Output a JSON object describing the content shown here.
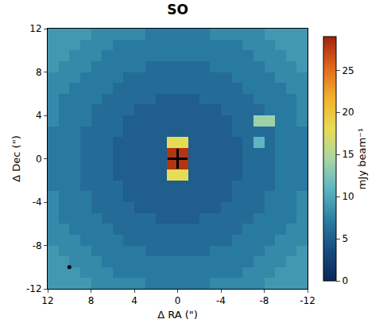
{
  "chart_data": {
    "type": "heatmap",
    "title": "SO",
    "x_label": "Δ RA (\")",
    "y_label": "Δ Dec (\")",
    "xlim": [
      12,
      -12
    ],
    "ylim": [
      -12,
      12
    ],
    "xticks": [
      12,
      8,
      4,
      0,
      -4,
      -8,
      -12
    ],
    "yticks": [
      -12,
      -8,
      -4,
      0,
      4,
      8,
      12
    ],
    "grid": false,
    "x": [
      -11.5,
      -10.5,
      -9.5,
      -8.5,
      -7.5,
      -6.5,
      -5.5,
      -4.5,
      -3.5,
      -2.5,
      -1.5,
      -0.5,
      0.5,
      1.5,
      2.5,
      3.5,
      4.5,
      5.5,
      6.5,
      7.5,
      8.5,
      9.5,
      10.5,
      11.5
    ],
    "y": [
      -11.5,
      -10.5,
      -9.5,
      -8.5,
      -7.5,
      -6.5,
      -5.5,
      -4.5,
      -3.5,
      -2.5,
      -1.5,
      -0.5,
      0.5,
      1.5,
      2.5,
      3.5,
      4.5,
      5.5,
      6.5,
      7.5,
      8.5,
      9.5,
      10.5,
      11.5
    ],
    "cells": [
      [
        9,
        9,
        9,
        9,
        8,
        8,
        8,
        8,
        8,
        7,
        7,
        7,
        7,
        7,
        7,
        8,
        8,
        8,
        8,
        8,
        9,
        9,
        9,
        9
      ],
      [
        9,
        9,
        9,
        8,
        8,
        8,
        7,
        7,
        7,
        7,
        7,
        7,
        7,
        7,
        7,
        7,
        7,
        7,
        8,
        8,
        8,
        9,
        9,
        9
      ],
      [
        9,
        9,
        8,
        8,
        8,
        7,
        7,
        7,
        7,
        7,
        7,
        7,
        7,
        7,
        7,
        7,
        7,
        7,
        7,
        8,
        8,
        8,
        9,
        9
      ],
      [
        9,
        8,
        8,
        8,
        7,
        7,
        7,
        7,
        7,
        6,
        6,
        6,
        6,
        6,
        6,
        7,
        7,
        7,
        7,
        7,
        8,
        8,
        8,
        9
      ],
      [
        8,
        8,
        8,
        7,
        7,
        7,
        7,
        6,
        6,
        6,
        6,
        6,
        6,
        6,
        6,
        6,
        6,
        7,
        7,
        7,
        7,
        8,
        8,
        8
      ],
      [
        8,
        8,
        7,
        7,
        7,
        7,
        6,
        6,
        6,
        6,
        6,
        6,
        6,
        6,
        6,
        6,
        6,
        6,
        7,
        7,
        7,
        7,
        8,
        8
      ],
      [
        8,
        7,
        7,
        7,
        7,
        6,
        6,
        6,
        6,
        6,
        5,
        5,
        5,
        5,
        6,
        6,
        6,
        6,
        6,
        7,
        7,
        7,
        7,
        8
      ],
      [
        8,
        7,
        7,
        7,
        6,
        6,
        6,
        6,
        5,
        5,
        5,
        5,
        5,
        5,
        5,
        5,
        6,
        6,
        6,
        6,
        7,
        7,
        7,
        8
      ],
      [
        8,
        7,
        7,
        7,
        6,
        6,
        6,
        5,
        5,
        5,
        5,
        5,
        5,
        5,
        5,
        5,
        5,
        6,
        6,
        6,
        7,
        7,
        7,
        8
      ],
      [
        7,
        7,
        7,
        6,
        6,
        6,
        6,
        5,
        5,
        5,
        5,
        5,
        5,
        5,
        5,
        5,
        5,
        6,
        6,
        6,
        6,
        7,
        7,
        7
      ],
      [
        7,
        7,
        7,
        6,
        6,
        6,
        5,
        5,
        5,
        5,
        5,
        18,
        18,
        5,
        5,
        5,
        5,
        5,
        6,
        6,
        6,
        7,
        7,
        7
      ],
      [
        7,
        7,
        7,
        6,
        6,
        6,
        5,
        5,
        5,
        5,
        5,
        28,
        28,
        5,
        5,
        5,
        5,
        5,
        6,
        6,
        6,
        7,
        7,
        7
      ],
      [
        7,
        7,
        7,
        6,
        6,
        6,
        5,
        5,
        5,
        5,
        5,
        28,
        28,
        5,
        5,
        5,
        5,
        5,
        6,
        6,
        6,
        7,
        7,
        7
      ],
      [
        7,
        7,
        7,
        6,
        11,
        6,
        5,
        5,
        5,
        5,
        5,
        18,
        18,
        5,
        5,
        5,
        5,
        5,
        6,
        6,
        6,
        7,
        7,
        7
      ],
      [
        7,
        7,
        7,
        6,
        6,
        6,
        6,
        5,
        5,
        5,
        5,
        5,
        5,
        5,
        5,
        5,
        5,
        6,
        6,
        6,
        6,
        7,
        7,
        7
      ],
      [
        8,
        7,
        7,
        14,
        14,
        6,
        6,
        5,
        5,
        5,
        5,
        5,
        5,
        5,
        5,
        5,
        5,
        6,
        6,
        6,
        7,
        7,
        7,
        8
      ],
      [
        8,
        7,
        7,
        7,
        6,
        6,
        6,
        6,
        5,
        5,
        5,
        5,
        5,
        5,
        5,
        5,
        6,
        6,
        6,
        6,
        7,
        7,
        7,
        8
      ],
      [
        8,
        7,
        7,
        7,
        7,
        6,
        6,
        6,
        6,
        6,
        5,
        5,
        5,
        5,
        6,
        6,
        6,
        6,
        6,
        7,
        7,
        7,
        7,
        8
      ],
      [
        8,
        8,
        7,
        7,
        7,
        7,
        6,
        6,
        6,
        6,
        6,
        6,
        6,
        6,
        6,
        6,
        6,
        6,
        7,
        7,
        7,
        7,
        8,
        8
      ],
      [
        8,
        8,
        8,
        7,
        7,
        7,
        7,
        6,
        6,
        6,
        6,
        6,
        6,
        6,
        6,
        6,
        6,
        7,
        7,
        7,
        7,
        8,
        8,
        8
      ],
      [
        9,
        8,
        8,
        8,
        7,
        7,
        7,
        7,
        7,
        6,
        6,
        6,
        6,
        6,
        6,
        7,
        7,
        7,
        7,
        7,
        8,
        8,
        8,
        9
      ],
      [
        9,
        9,
        8,
        8,
        8,
        7,
        7,
        7,
        7,
        7,
        7,
        7,
        7,
        7,
        7,
        7,
        7,
        7,
        7,
        8,
        8,
        8,
        9,
        9
      ],
      [
        9,
        9,
        9,
        8,
        8,
        8,
        7,
        7,
        7,
        7,
        7,
        7,
        7,
        7,
        7,
        7,
        7,
        7,
        8,
        8,
        8,
        9,
        9,
        9
      ],
      [
        9,
        9,
        9,
        9,
        8,
        8,
        8,
        8,
        8,
        7,
        7,
        7,
        7,
        7,
        7,
        8,
        8,
        8,
        8,
        8,
        9,
        9,
        9,
        9
      ]
    ],
    "colorbar": {
      "title": "mJy beam⁻¹",
      "range": [
        0,
        29
      ],
      "ticks": [
        0,
        5,
        10,
        15,
        20,
        25
      ]
    },
    "markers": [
      {
        "x": 0,
        "y": 0,
        "marker": "cross"
      },
      {
        "x": 10,
        "y": -10,
        "marker": "circle"
      }
    ]
  }
}
